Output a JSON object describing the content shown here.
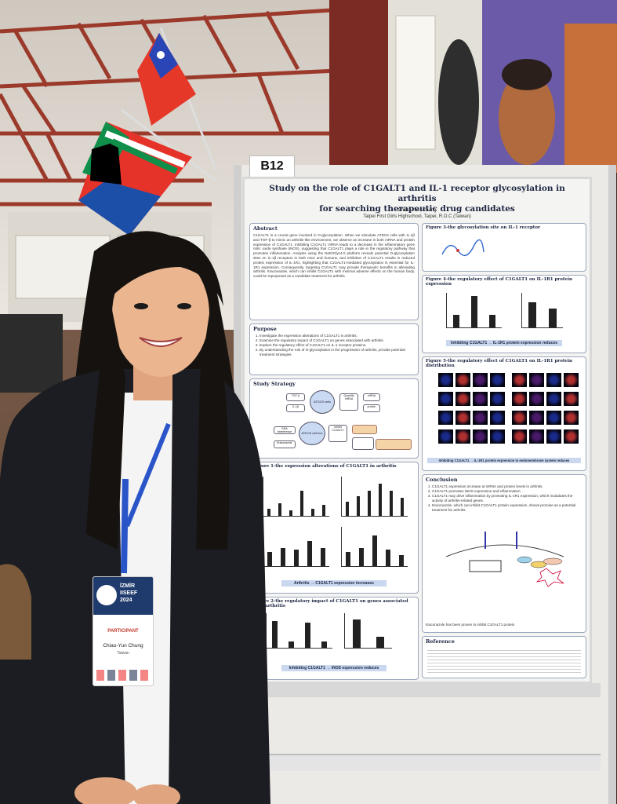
{
  "booth": {
    "number": "B12"
  },
  "poster": {
    "title_line1": "Study on the role of C1GALT1 and IL-1 receptor glycosylation in arthritis",
    "title_line2": "for searching therapeutic drug candidates",
    "author": "Chiao-Yun, Chung",
    "affiliation": "Taipei First Girls Highschool, Taipei, R.O.C (Taiwan)",
    "abstract": {
      "heading": "Abstract",
      "text": "C1GALT1 is a crucial gene involved in O-glycosylation. When we stimulate ATDC5 cells with IL-1β and TGF-β to mimic an arthritis-like environment, we observe an increase in both mRNA and protein expression of C1GALT1. Inhibiting C1GALT1 mRNA leads to a decrease in the inflammatory gene nitric oxide synthase (iNOS), suggesting that C1GALT1 plays a role in the regulatory pathway that promotes inflammation. Analysis using the NetOGlyc4.0 platform reveals potential O-glycosylation sites on IL-1β receptors in both mice and humans, and inhibition of C1GALT1 results in reduced protein expression of IL-1R1, highlighting that C1GALT1-mediated glycosylation is essential for IL-1R1 expression. Consequently, targeting C1GALT1 may provide therapeutic benefits in alleviating arthritis. Itraconazole, which can inhibit C1GALT1 with minimal adverse effects on the human body, could be repurposed as a candidate treatment for arthritis."
    },
    "purpose": {
      "heading": "Purpose",
      "items": [
        "Investigate the expression alterations of C1GALT1 in arthritis.",
        "Examine the regulatory impact of C1GALT1 on genes associated with arthritis.",
        "Explore the regulatory effect of C1GALT1 on IL-1 receptor proteins.",
        "By understanding the role of O-glycosylation in the progression of arthritis, provide potential treatment strategies."
      ]
    },
    "strategy": {
      "heading": "Study Strategy",
      "nodes": [
        "TGF-β",
        "IL-1β",
        "ATDC5 cells",
        "Quantify mRNA",
        "mRNA",
        "protein",
        "RNA interference",
        "ATDC5 cell line",
        "Inhibit C1GALT1",
        "Itraconazole"
      ]
    },
    "figure1": {
      "heading": "Figure 1-the expression alterations of C1GALT1 in arthritis",
      "caption": "Arthritis → C1GALT1 expression increases"
    },
    "figure2": {
      "heading": "Figure 2-the regulatory impact of C1GALT1 on genes associated with arthritis",
      "caption": "Inhibiting C1GALT1 → iNOS expression reduces"
    },
    "figure3": {
      "heading": "Figure 3-the glycosylation site on IL-1 receptor"
    },
    "figure4": {
      "heading": "Figure 4-the regulatory effect of C1GALT1 on IL-1R1 protein expression",
      "caption": "Inhibiting C1GALT1 → IL-1R1 protein expression reduces"
    },
    "figure5": {
      "heading": "Figure 5-the regulatory effect of C1GALT1 on IL-1R1 protein distribution",
      "caption": "Inhibiting C1GALT1 → IL-1R1 protein expression in endomembrane system reduces"
    },
    "conclusion": {
      "heading": "Conclusion",
      "items": [
        "C1GALT1 expression increase at mRNA and protein levels in arthritis.",
        "C1GALT1 promotes iNOS expression and inflammation.",
        "C1GALT1 may drive inflammation by promoting IL-1R1 expression, which modulates the activity of arthritis-related genes.",
        "Itraconazole, which can inhibit C1GALT1 protein expression, shows promise as a potential treatment for arthritis."
      ],
      "note": "Itraconazole has been proven to inhibit C1GALT1 protein"
    },
    "reference": {
      "heading": "Reference"
    }
  },
  "badge": {
    "event_line1": "İZMİR",
    "event_line2": "IISEEF",
    "event_year": "2024",
    "role": "PARTICIPANT",
    "name": "Chiao-Yun Chung",
    "country": "Taiwan"
  },
  "colors": {
    "poster_title": "#1b2440",
    "caption_bg": "#c9d8ee",
    "badge_header": "#1f3b6e",
    "role_text": "#c0392b",
    "blazer": "#1c1d22",
    "lanyard": "#2a55c9"
  },
  "chart_bars": {
    "fig1a": [
      0.2,
      0.35,
      0.15,
      0.7,
      0.2,
      0.3
    ],
    "fig1b": [
      0.4,
      0.55,
      0.7,
      0.9,
      0.7,
      0.5
    ],
    "fig1c": [
      0.4,
      0.5,
      0.45,
      0.7,
      0.5
    ],
    "fig1d": [
      0.4,
      0.5,
      0.85,
      0.45,
      0.3
    ],
    "fig2a": [
      0.85,
      0.2,
      0.8,
      0.2
    ],
    "fig2b": [
      0.9,
      0.35
    ],
    "fig4a": [
      0.4,
      1.0,
      0.4
    ],
    "fig4b": [
      0.8,
      0.6
    ]
  }
}
